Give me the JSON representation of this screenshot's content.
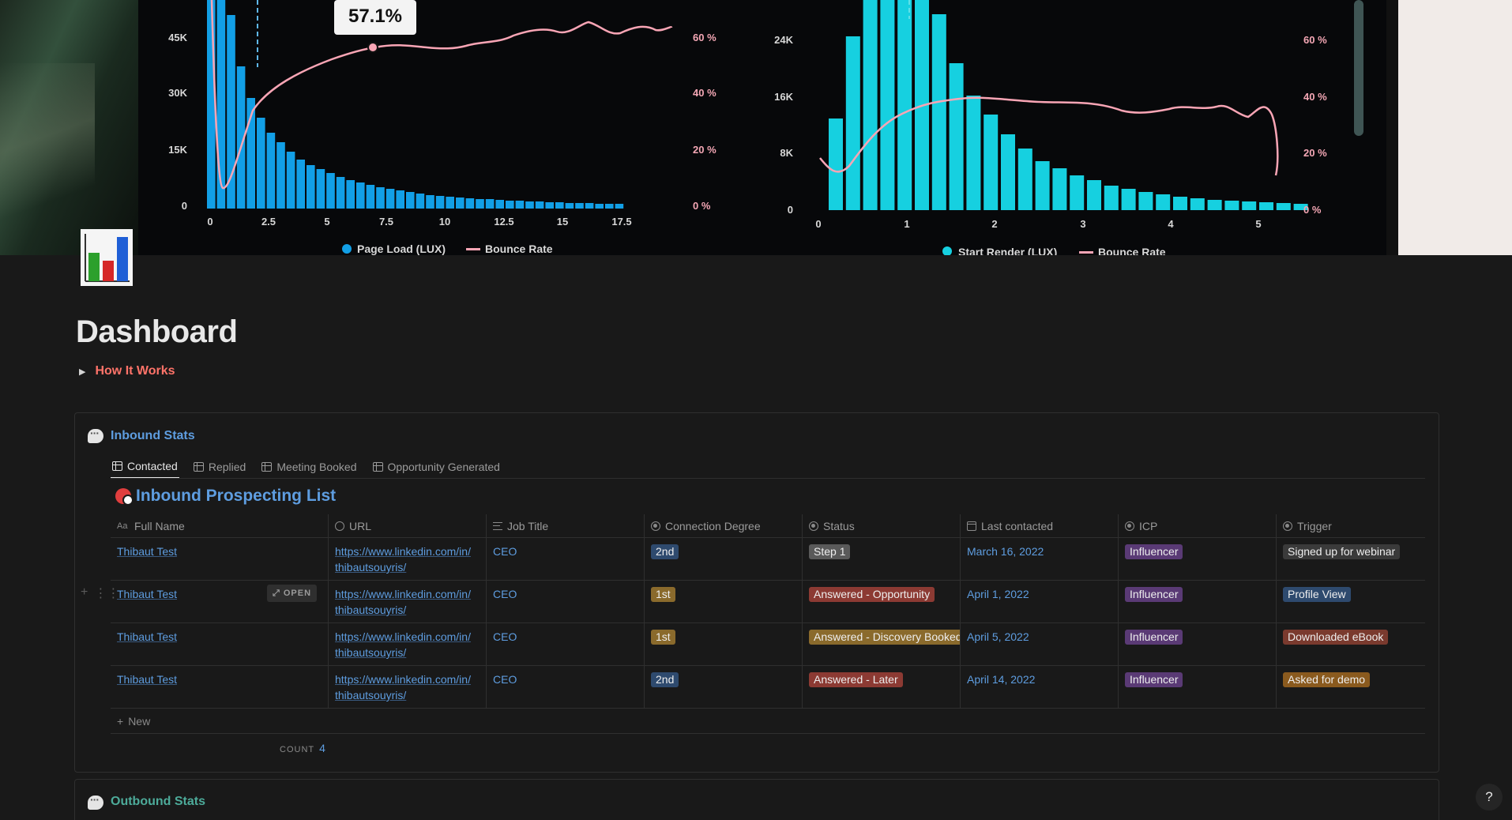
{
  "cover": {
    "tooltip": "57.1%",
    "left_chart": {
      "y_ticks": [
        "45K",
        "30K",
        "15K",
        "0"
      ],
      "y2_ticks": [
        "60 %",
        "40 %",
        "20 %",
        "0 %"
      ],
      "x_ticks": [
        "0",
        "2.5",
        "5",
        "7.5",
        "10",
        "12.5",
        "15",
        "17.5"
      ],
      "legend": [
        "Page Load (LUX)",
        "Bounce Rate"
      ]
    },
    "right_chart": {
      "y_ticks": [
        "24K",
        "16K",
        "8K",
        "0"
      ],
      "y2_ticks": [
        "60 %",
        "40 %",
        "20 %",
        "0 %"
      ],
      "x_ticks": [
        "0",
        "1",
        "2",
        "3",
        "4",
        "5"
      ],
      "legend": [
        "Start Render (LUX)",
        "Bounce Rate"
      ]
    }
  },
  "page": {
    "title": "Dashboard",
    "toggle_label": "How It Works"
  },
  "inbound": {
    "heading": "Inbound Stats",
    "tabs": [
      {
        "label": "Contacted",
        "active": true
      },
      {
        "label": "Replied",
        "active": false
      },
      {
        "label": "Meeting Booked",
        "active": false
      },
      {
        "label": "Opportunity Generated",
        "active": false
      }
    ],
    "db_title": "Inbound Prospecting List",
    "columns": [
      "Full Name",
      "URL",
      "Job Title",
      "Connection Degree",
      "Status",
      "Last contacted",
      "ICP",
      "Trigger"
    ],
    "rows": [
      {
        "name": "Thibaut Test",
        "url1": "https://www.linkedin.com/in/",
        "url2": "thibautsouyris/",
        "job": "CEO",
        "degree": "2nd",
        "status": "Step 1",
        "date": "March 16, 2022",
        "icp": "Influencer",
        "trigger": "Signed up for webinar"
      },
      {
        "name": "Thibaut Test",
        "url1": "https://www.linkedin.com/in/",
        "url2": "thibautsouyris/",
        "job": "CEO",
        "degree": "1st",
        "status": "Answered - Opportunity",
        "date": "April 1, 2022",
        "icp": "Influencer",
        "trigger": "Profile View"
      },
      {
        "name": "Thibaut Test",
        "url1": "https://www.linkedin.com/in/",
        "url2": "thibautsouyris/",
        "job": "CEO",
        "degree": "1st",
        "status": "Answered - Discovery Booked",
        "date": "April 5, 2022",
        "icp": "Influencer",
        "trigger": "Downloaded eBook"
      },
      {
        "name": "Thibaut Test",
        "url1": "https://www.linkedin.com/in/",
        "url2": "thibautsouyris/",
        "job": "CEO",
        "degree": "2nd",
        "status": "Answered - Later",
        "date": "April 14, 2022",
        "icp": "Influencer",
        "trigger": "Asked for demo"
      }
    ],
    "open_label": "OPEN",
    "new_label": "New",
    "count_label": "COUNT",
    "count_value": "4"
  },
  "outbound": {
    "heading": "Outbound Stats"
  },
  "help_label": "?",
  "colors": {
    "degree_2nd": "#2e4a6e",
    "degree_1st": "#8a6a2c",
    "step": "#5a5a5a",
    "opportunity": "#8c3a33",
    "discovery": "#8a6a2c",
    "later": "#8c3a33",
    "influencer": "#5a3a75",
    "trigger_webinar": "#3a3a3a",
    "trigger_profile": "#2e4a6e",
    "trigger_ebook": "#7a3a2e",
    "trigger_demo": "#8a5a1e"
  }
}
